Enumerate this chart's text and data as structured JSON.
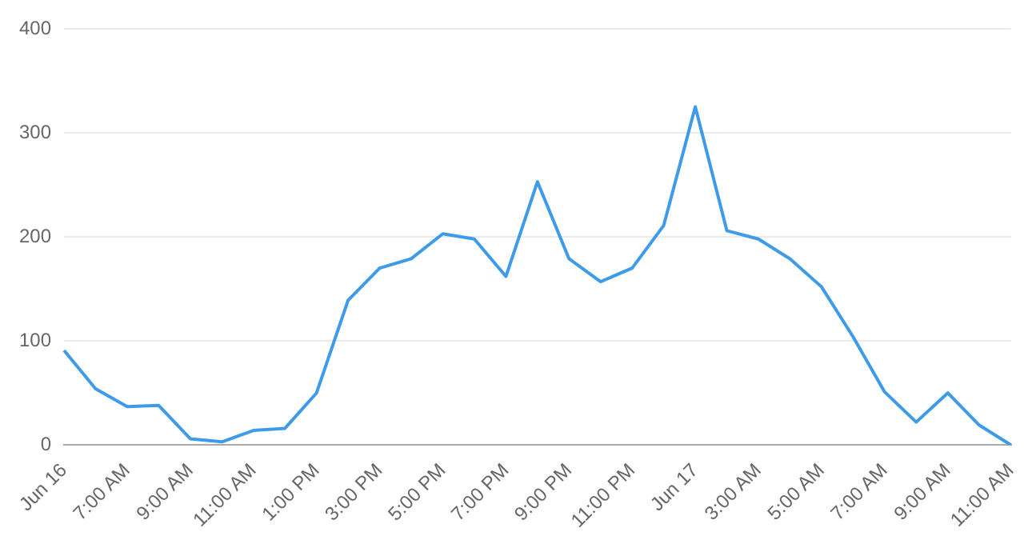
{
  "chart_data": {
    "type": "line",
    "categories": [
      "Jun 16",
      null,
      "7:00 AM",
      null,
      "9:00 AM",
      null,
      "11:00 AM",
      null,
      "1:00 PM",
      null,
      "3:00 PM",
      null,
      "5:00 PM",
      null,
      "7:00 PM",
      null,
      "9:00 PM",
      null,
      "11:00 PM",
      null,
      "Jun 17",
      null,
      "3:00 AM",
      null,
      "5:00 AM",
      null,
      "7:00 AM",
      null,
      "9:00 AM",
      null,
      "11:00 AM"
    ],
    "series": [
      {
        "color": "#3d9be9",
        "values": [
          91,
          54,
          37,
          38,
          6,
          3,
          14,
          16,
          50,
          139,
          170,
          179,
          203,
          198,
          162,
          253,
          179,
          157,
          170,
          211,
          325,
          206,
          198,
          179,
          152,
          104,
          51,
          22,
          50,
          19,
          0
        ]
      }
    ],
    "ylim": [
      0,
      400
    ],
    "yticks": [
      0,
      100,
      200,
      300,
      400
    ],
    "grid": "y",
    "marker": "none",
    "line_style": "solid",
    "legend": false
  }
}
